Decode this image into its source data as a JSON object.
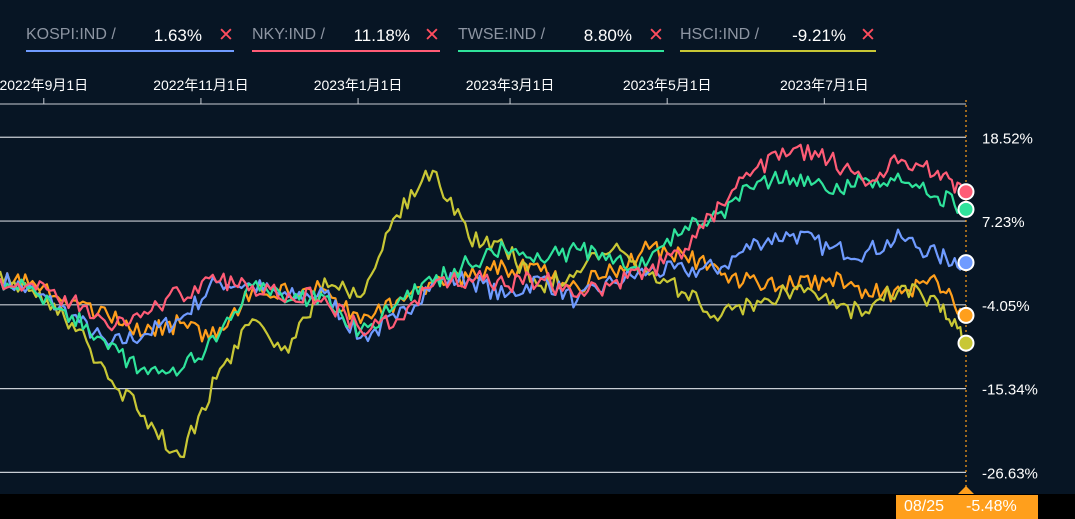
{
  "legend": {
    "items": [
      {
        "name": "KOSPI:IND /",
        "value": "1.63%",
        "color": "#6f9bff",
        "close": "✕"
      },
      {
        "name": "NKY:IND /",
        "value": "11.18%",
        "color": "#ff5c76",
        "close": "✕"
      },
      {
        "name": "TWSE:IND /",
        "value": "8.80%",
        "color": "#2fe39b",
        "close": "✕"
      },
      {
        "name": "HSCI:IND /",
        "value": "-9.21%",
        "color": "#c8c735",
        "close": "✕"
      }
    ]
  },
  "cursor": {
    "date": "08/25",
    "value": "-5.48%",
    "color": "#ff9f1c"
  },
  "chart_data": {
    "type": "line",
    "x_start": "2022-08-15",
    "x_end": "2023-08-25",
    "x_ticks": [
      {
        "date": "2022-09-01",
        "label": "2022年9月1日"
      },
      {
        "date": "2022-11-01",
        "label": "2022年11月1日"
      },
      {
        "date": "2023-01-01",
        "label": "2023年1月1日"
      },
      {
        "date": "2023-03-01",
        "label": "2023年3月1日"
      },
      {
        "date": "2023-05-01",
        "label": "2023年5月1日"
      },
      {
        "date": "2023-07-01",
        "label": "2023年7月1日"
      }
    ],
    "y_ticks": [
      {
        "value": 18.52,
        "label": "18.52%"
      },
      {
        "value": 7.23,
        "label": "7.23%"
      },
      {
        "value": -4.05,
        "label": "-4.05%"
      },
      {
        "value": -15.34,
        "label": "-15.34%"
      },
      {
        "value": -26.63,
        "label": "-26.63%"
      }
    ],
    "ylim": [
      -29.0,
      23.0
    ],
    "series": [
      {
        "name": "KOSPI:IND",
        "color": "#6f9bff",
        "end_value": 1.63,
        "x": [
          "2022-08-15",
          "2022-08-29",
          "2022-09-12",
          "2022-09-26",
          "2022-10-10",
          "2022-10-24",
          "2022-11-07",
          "2022-11-21",
          "2022-12-05",
          "2022-12-19",
          "2023-01-02",
          "2023-01-16",
          "2023-01-30",
          "2023-02-13",
          "2023-02-27",
          "2023-03-13",
          "2023-03-27",
          "2023-04-10",
          "2023-04-24",
          "2023-05-08",
          "2023-05-22",
          "2023-06-05",
          "2023-06-19",
          "2023-07-03",
          "2023-07-17",
          "2023-07-31",
          "2023-08-14",
          "2023-08-25"
        ],
        "values": [
          -0.5,
          -2.5,
          -5.5,
          -9.5,
          -8.0,
          -6.0,
          -1.0,
          -1.5,
          -3.0,
          -2.5,
          -8.5,
          -6.0,
          -1.0,
          -0.5,
          -3.0,
          -0.5,
          -3.5,
          -1.0,
          0.5,
          0.5,
          1.0,
          4.5,
          5.5,
          3.5,
          3.0,
          5.0,
          2.5,
          1.63
        ]
      },
      {
        "name": "NKY:IND",
        "color": "#ff5c76",
        "end_value": 11.18,
        "x": [
          "2022-08-15",
          "2022-08-29",
          "2022-09-12",
          "2022-09-26",
          "2022-10-10",
          "2022-10-24",
          "2022-11-07",
          "2022-11-21",
          "2022-12-05",
          "2022-12-19",
          "2023-01-02",
          "2023-01-16",
          "2023-01-30",
          "2023-02-13",
          "2023-02-27",
          "2023-03-13",
          "2023-03-27",
          "2023-04-10",
          "2023-04-24",
          "2023-05-08",
          "2023-05-22",
          "2023-06-05",
          "2023-06-19",
          "2023-07-03",
          "2023-07-17",
          "2023-07-31",
          "2023-08-14",
          "2023-08-25"
        ],
        "values": [
          -0.5,
          -2.0,
          -3.5,
          -7.0,
          -5.0,
          -2.5,
          -1.0,
          -1.5,
          -2.5,
          -3.0,
          -7.5,
          -6.0,
          -1.5,
          -0.5,
          -1.5,
          -0.5,
          -3.0,
          -1.0,
          0.5,
          3.5,
          9.5,
          14.5,
          17.0,
          15.5,
          12.0,
          15.5,
          14.0,
          11.18
        ]
      },
      {
        "name": "TWSE:IND",
        "color": "#2fe39b",
        "end_value": 8.8,
        "x": [
          "2022-08-15",
          "2022-08-29",
          "2022-09-12",
          "2022-09-26",
          "2022-10-10",
          "2022-10-24",
          "2022-11-07",
          "2022-11-21",
          "2022-12-05",
          "2022-12-19",
          "2023-01-02",
          "2023-01-16",
          "2023-01-30",
          "2023-02-13",
          "2023-02-27",
          "2023-03-13",
          "2023-03-27",
          "2023-04-10",
          "2023-04-24",
          "2023-05-08",
          "2023-05-22",
          "2023-06-05",
          "2023-06-19",
          "2023-07-03",
          "2023-07-17",
          "2023-07-31",
          "2023-08-14",
          "2023-08-25"
        ],
        "values": [
          -0.5,
          -2.5,
          -5.5,
          -10.0,
          -12.5,
          -13.0,
          -9.0,
          -1.5,
          -3.5,
          -3.0,
          -7.5,
          -4.0,
          -1.0,
          1.5,
          3.5,
          2.0,
          3.5,
          1.5,
          2.0,
          6.5,
          8.5,
          12.5,
          13.0,
          11.0,
          13.0,
          12.5,
          10.5,
          8.8
        ]
      },
      {
        "name": "HSCI:IND",
        "color": "#c8c735",
        "end_value": -9.21,
        "x": [
          "2022-08-15",
          "2022-08-29",
          "2022-09-12",
          "2022-09-26",
          "2022-10-10",
          "2022-10-24",
          "2022-11-07",
          "2022-11-21",
          "2022-12-05",
          "2022-12-19",
          "2023-01-02",
          "2023-01-16",
          "2023-01-30",
          "2023-02-13",
          "2023-02-27",
          "2023-03-13",
          "2023-03-27",
          "2023-04-10",
          "2023-04-24",
          "2023-05-08",
          "2023-05-22",
          "2023-06-05",
          "2023-06-19",
          "2023-07-03",
          "2023-07-17",
          "2023-07-31",
          "2023-08-14",
          "2023-08-25"
        ],
        "values": [
          0.5,
          -3.0,
          -6.5,
          -14.0,
          -19.0,
          -24.5,
          -14.0,
          -6.0,
          -10.5,
          -0.5,
          -3.0,
          8.0,
          14.0,
          5.0,
          3.5,
          -1.5,
          0.5,
          3.5,
          0.0,
          -2.5,
          -5.5,
          -3.5,
          -2.0,
          -4.0,
          -5.0,
          -1.5,
          -3.5,
          -9.21
        ]
      },
      {
        "name": "orange",
        "color": "#ff9f1c",
        "end_value": -5.48,
        "x": [
          "2022-08-15",
          "2022-08-29",
          "2022-09-12",
          "2022-09-26",
          "2022-10-10",
          "2022-10-24",
          "2022-11-07",
          "2022-11-21",
          "2022-12-05",
          "2022-12-19",
          "2023-01-02",
          "2023-01-16",
          "2023-01-30",
          "2023-02-13",
          "2023-02-27",
          "2023-03-13",
          "2023-03-27",
          "2023-04-10",
          "2023-04-24",
          "2023-05-08",
          "2023-05-22",
          "2023-06-05",
          "2023-06-19",
          "2023-07-03",
          "2023-07-17",
          "2023-07-31",
          "2023-08-14",
          "2023-08-25"
        ],
        "values": [
          -0.5,
          -1.5,
          -3.5,
          -5.5,
          -8.0,
          -6.5,
          -8.5,
          -2.0,
          -2.5,
          -2.0,
          -6.5,
          -3.5,
          -1.0,
          -0.5,
          1.0,
          0.5,
          -1.5,
          0.5,
          3.5,
          2.5,
          0.0,
          -1.0,
          -1.5,
          -0.5,
          -2.0,
          -2.5,
          -1.0,
          -5.48
        ]
      }
    ]
  }
}
